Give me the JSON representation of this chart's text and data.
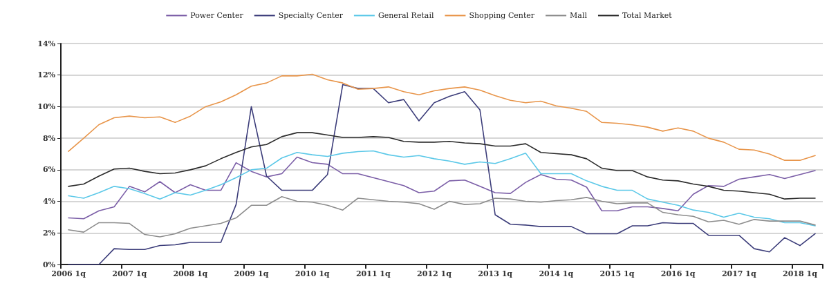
{
  "chart_data": {
    "type": "line",
    "categories": [
      "2006 1q",
      null,
      null,
      null,
      "2007 1q",
      null,
      null,
      null,
      "2008 1q",
      null,
      null,
      null,
      "2009 1q",
      null,
      null,
      null,
      "2010 1q",
      null,
      null,
      null,
      "2011 1q",
      null,
      null,
      null,
      "2012 1q",
      null,
      null,
      null,
      "2013 1q",
      null,
      null,
      null,
      "2014 1q",
      null,
      null,
      null,
      "2015 1q",
      null,
      null,
      null,
      "2016 1q",
      null,
      null,
      null,
      "2017 1q",
      null,
      null,
      null,
      "2018 1q",
      null
    ],
    "series": [
      {
        "name": "Power Center",
        "color": "#7b5ea7",
        "values": [
          2.95,
          2.9,
          3.4,
          3.65,
          4.95,
          4.6,
          5.25,
          4.55,
          5.05,
          4.7,
          4.7,
          6.45,
          5.9,
          5.55,
          5.75,
          6.8,
          6.45,
          6.35,
          5.75,
          5.75,
          5.5,
          5.25,
          5.0,
          4.55,
          4.65,
          5.3,
          5.35,
          4.95,
          4.55,
          4.5,
          5.2,
          5.7,
          5.4,
          5.35,
          4.9,
          3.4,
          3.4,
          3.65,
          3.65,
          3.55,
          3.4,
          4.45,
          5.0,
          4.95,
          5.4,
          5.55,
          5.7,
          5.45,
          5.7,
          5.95
        ]
      },
      {
        "name": "Specialty Center",
        "color": "#3c3d7a",
        "values": [
          0,
          0,
          0,
          1.0,
          0.95,
          0.95,
          1.2,
          1.25,
          1.4,
          1.4,
          1.4,
          3.8,
          10.0,
          5.6,
          4.7,
          4.7,
          4.7,
          5.7,
          11.4,
          11.15,
          11.15,
          10.25,
          10.45,
          9.1,
          10.25,
          10.65,
          10.95,
          9.8,
          3.15,
          2.55,
          2.5,
          2.4,
          2.4,
          2.4,
          1.95,
          1.95,
          1.95,
          2.45,
          2.45,
          2.65,
          2.6,
          2.6,
          1.85,
          1.85,
          1.85,
          1.0,
          0.8,
          1.7,
          1.2,
          1.95
        ]
      },
      {
        "name": "General Retail",
        "color": "#5bc8e8",
        "values": [
          4.35,
          4.2,
          4.55,
          4.95,
          4.8,
          4.5,
          4.15,
          4.55,
          4.4,
          4.7,
          5.05,
          5.5,
          6.0,
          6.1,
          6.75,
          7.1,
          6.95,
          6.85,
          7.05,
          7.15,
          7.2,
          6.95,
          6.8,
          6.9,
          6.7,
          6.55,
          6.35,
          6.5,
          6.4,
          6.7,
          7.05,
          5.75,
          5.75,
          5.75,
          5.3,
          4.95,
          4.7,
          4.7,
          4.15,
          3.95,
          3.75,
          3.45,
          3.3,
          3.0,
          3.25,
          3.0,
          2.9,
          2.65,
          2.65,
          2.45
        ]
      },
      {
        "name": "Shopping Center",
        "color": "#e8954a",
        "values": [
          7.17,
          8.0,
          8.86,
          9.3,
          9.4,
          9.3,
          9.35,
          9.0,
          9.4,
          10.0,
          10.3,
          10.75,
          11.3,
          11.5,
          11.95,
          11.95,
          12.05,
          11.7,
          11.5,
          11.1,
          11.15,
          11.25,
          10.95,
          10.75,
          11.0,
          11.15,
          11.25,
          11.05,
          10.7,
          10.4,
          10.25,
          10.35,
          10.05,
          9.9,
          9.7,
          9.0,
          8.95,
          8.85,
          8.7,
          8.45,
          8.65,
          8.45,
          8.0,
          7.75,
          7.3,
          7.25,
          7.0,
          6.6,
          6.6,
          6.9
        ]
      },
      {
        "name": "Mall",
        "color": "#8c8c8c",
        "values": [
          2.2,
          2.05,
          2.65,
          2.65,
          2.6,
          1.9,
          1.75,
          1.95,
          2.3,
          2.45,
          2.6,
          2.95,
          3.75,
          3.75,
          4.3,
          4.0,
          3.95,
          3.75,
          3.45,
          4.2,
          4.1,
          4.0,
          3.95,
          3.85,
          3.5,
          4.0,
          3.8,
          3.85,
          4.2,
          4.15,
          4.0,
          3.95,
          4.05,
          4.1,
          4.25,
          4.0,
          3.85,
          3.9,
          3.9,
          3.3,
          3.15,
          3.05,
          2.7,
          2.8,
          2.55,
          2.85,
          2.75,
          2.75,
          2.75,
          2.5
        ]
      },
      {
        "name": "Total Market",
        "color": "#2a2a2a",
        "values": [
          4.95,
          5.1,
          5.6,
          6.05,
          6.1,
          5.9,
          5.75,
          5.8,
          6.0,
          6.25,
          6.7,
          7.1,
          7.45,
          7.6,
          8.1,
          8.35,
          8.35,
          8.2,
          8.05,
          8.05,
          8.1,
          8.05,
          7.8,
          7.75,
          7.75,
          7.8,
          7.7,
          7.65,
          7.5,
          7.5,
          7.65,
          7.1,
          7.02,
          6.95,
          6.7,
          6.1,
          5.95,
          5.95,
          5.55,
          5.35,
          5.3,
          5.1,
          4.95,
          4.7,
          4.65,
          4.55,
          4.45,
          4.15,
          4.2,
          4.2
        ]
      }
    ],
    "ylim": [
      0,
      14
    ],
    "yticks": [
      {
        "value": 0,
        "label": "0%"
      },
      {
        "value": 2,
        "label": "2%"
      },
      {
        "value": 4,
        "label": "4%"
      },
      {
        "value": 6,
        "label": "6%"
      },
      {
        "value": 8,
        "label": "8%"
      },
      {
        "value": 10,
        "label": "10%"
      },
      {
        "value": 12,
        "label": "12%"
      },
      {
        "value": 14,
        "label": "14%"
      }
    ],
    "grid": "y",
    "legend": "top",
    "marker": "none",
    "line_style": "solid"
  }
}
